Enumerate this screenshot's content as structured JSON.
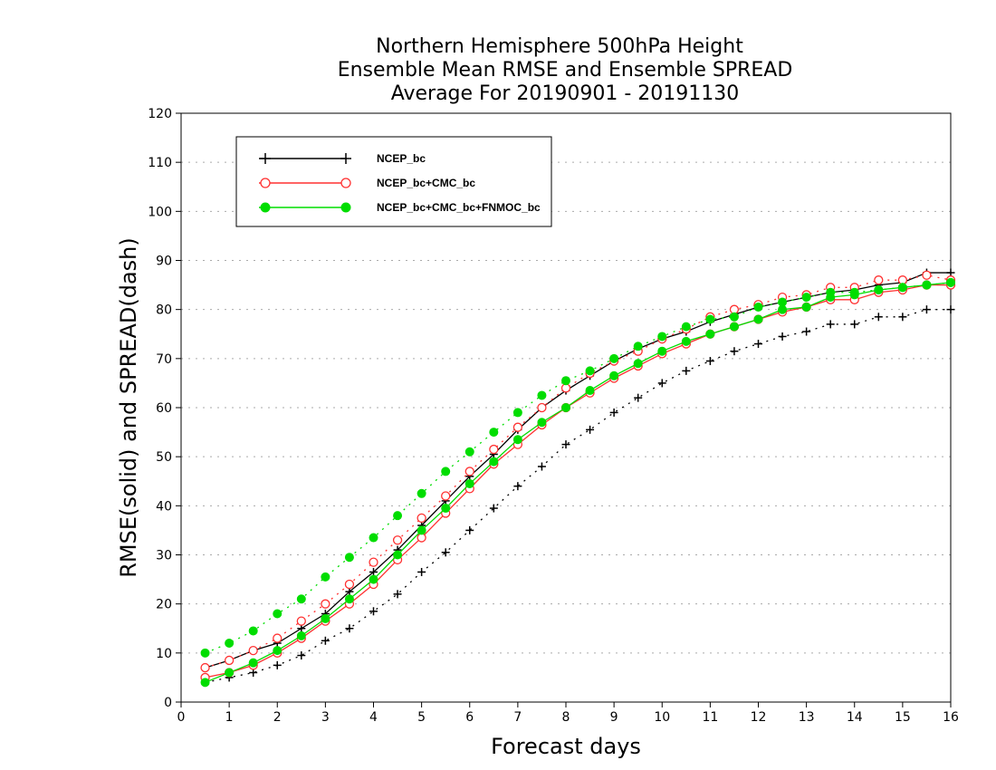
{
  "chart_data": {
    "type": "line",
    "title_lines": [
      "Northern Hemisphere 500hPa Height",
      "Ensemble Mean RMSE and Ensemble SPREAD",
      "Average For 20190901 - 20191130"
    ],
    "xlabel": "Forecast days",
    "ylabel": "RMSE(solid) and SPREAD(dash)",
    "xlim": [
      0,
      16
    ],
    "ylim": [
      0,
      120
    ],
    "xticks": [
      0,
      1,
      2,
      3,
      4,
      5,
      6,
      7,
      8,
      9,
      10,
      11,
      12,
      13,
      14,
      15,
      16
    ],
    "yticks": [
      0,
      10,
      20,
      30,
      40,
      50,
      60,
      70,
      80,
      90,
      100,
      110,
      120
    ],
    "grid": true,
    "legend_position": "top-left",
    "x": [
      0.5,
      1,
      1.5,
      2,
      2.5,
      3,
      3.5,
      4,
      4.5,
      5,
      5.5,
      6,
      6.5,
      7,
      7.5,
      8,
      8.5,
      9,
      9.5,
      10,
      10.5,
      11,
      11.5,
      12,
      12.5,
      13,
      13.5,
      14,
      14.5,
      15,
      15.5,
      16
    ],
    "series": [
      {
        "name": "NCEP_bc",
        "color": "#000000",
        "marker": "plus",
        "rmse": [
          7,
          8.5,
          10.5,
          12,
          15,
          18,
          22.5,
          26.5,
          31,
          36,
          41,
          46,
          50.5,
          55.5,
          60,
          63.5,
          66.5,
          69.5,
          72,
          74,
          75.5,
          77.5,
          79,
          80.5,
          81.5,
          82.5,
          83.5,
          84,
          85,
          85.5,
          87.5,
          87.5
        ],
        "spread": [
          4,
          5,
          6,
          7.5,
          9.5,
          12.5,
          15,
          18.5,
          22,
          26.5,
          30.5,
          35,
          39.5,
          44,
          48,
          52.5,
          55.5,
          59,
          62,
          65,
          67.5,
          69.5,
          71.5,
          73,
          74.5,
          75.5,
          77,
          77,
          78.5,
          78.5,
          80,
          80
        ]
      },
      {
        "name": "NCEP_bc+CMC_bc",
        "color": "#ff3030",
        "marker": "open-circle",
        "rmse": [
          5,
          6,
          7.5,
          10,
          13,
          16.5,
          20,
          24,
          29,
          33.5,
          38.5,
          43.5,
          48.5,
          52.5,
          56.5,
          60,
          63,
          66,
          68.5,
          71,
          73,
          75,
          76.5,
          78,
          79.5,
          80.5,
          82,
          82,
          83.5,
          84,
          85,
          85
        ],
        "spread": [
          7,
          8.5,
          10.5,
          13,
          16.5,
          20,
          24,
          28.5,
          33,
          37.5,
          42,
          47,
          51.5,
          56,
          60,
          64,
          67,
          69.5,
          71.5,
          74,
          76,
          78.5,
          80,
          81,
          82.5,
          83,
          84.5,
          84.5,
          86,
          86,
          87,
          86
        ]
      },
      {
        "name": "NCEP_bc+CMC_bc+FNMOC_bc",
        "color": "#00dd00",
        "marker": "filled-circle",
        "rmse": [
          4,
          6,
          8,
          10.5,
          13.5,
          17,
          21,
          25,
          30,
          35,
          39.5,
          44.5,
          49,
          53.5,
          57,
          60,
          63.5,
          66.5,
          69,
          71.5,
          73.5,
          75,
          76.5,
          78,
          80,
          80.5,
          82.5,
          83,
          84,
          84.5,
          85,
          85.5
        ],
        "spread": [
          10,
          12,
          14.5,
          18,
          21,
          25.5,
          29.5,
          33.5,
          38,
          42.5,
          47,
          51,
          55,
          59,
          62.5,
          65.5,
          67.5,
          70,
          72.5,
          74.5,
          76.5,
          78,
          78.5,
          80.5,
          81.5,
          82.5,
          83.5,
          83.5,
          84,
          84.5,
          85,
          85.5
        ]
      }
    ]
  }
}
